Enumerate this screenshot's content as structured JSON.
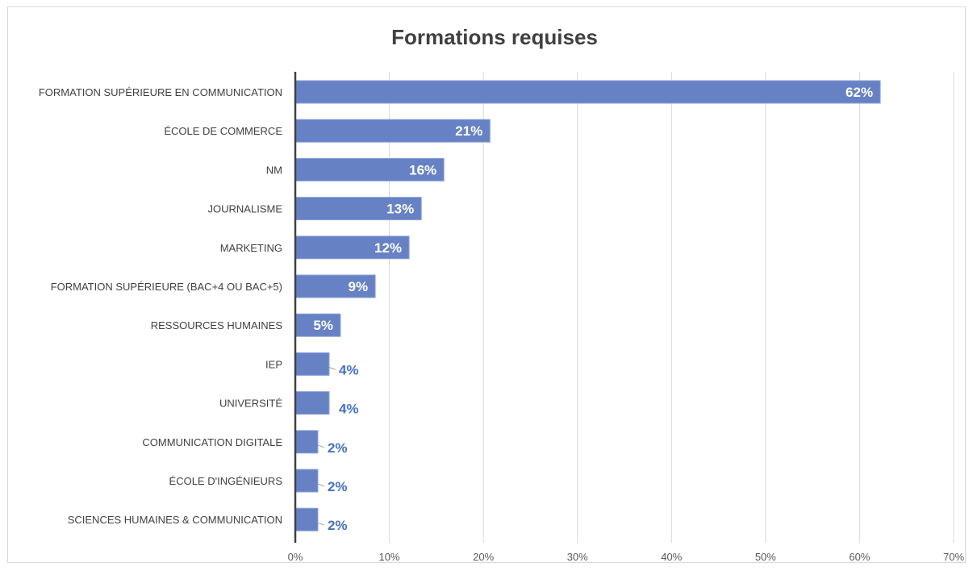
{
  "chart_data": {
    "type": "bar",
    "orientation": "horizontal",
    "title": "Formations requises",
    "categories": [
      "FORMATION SUPÉRIEURE EN COMMUNICATION",
      "ÉCOLE DE COMMERCE",
      "NM",
      "JOURNALISME",
      "MARKETING",
      "FORMATION SUPÉRIEURE (BAC+4 OU BAC+5)",
      "RESSOURCES HUMAINES",
      "IEP",
      "UNIVERSITÉ",
      "COMMUNICATION DIGITALE",
      "ÉCOLE D'INGÉNIEURS",
      "SCIENCES HUMAINES & COMMUNICATION"
    ],
    "values": [
      62.2,
      20.7,
      15.8,
      13.4,
      12.1,
      8.5,
      4.8,
      3.6,
      3.6,
      2.4,
      2.4,
      2.4
    ],
    "data_labels": [
      "62%",
      "21%",
      "16%",
      "13%",
      "12%",
      "9%",
      "5%",
      "4%",
      "4%",
      "2%",
      "2%",
      "2%"
    ],
    "xlim": [
      0,
      70
    ],
    "xticks": [
      0,
      10,
      20,
      30,
      40,
      50,
      60,
      70
    ],
    "xtick_labels": [
      "0%",
      "10%",
      "20%",
      "30%",
      "40%",
      "50%",
      "60%",
      "70%"
    ],
    "xlabel": "",
    "ylabel": "",
    "bar_color": "#6681c4",
    "label_color_outside": "#4472c4",
    "grid": "vertical",
    "legend": "none"
  }
}
